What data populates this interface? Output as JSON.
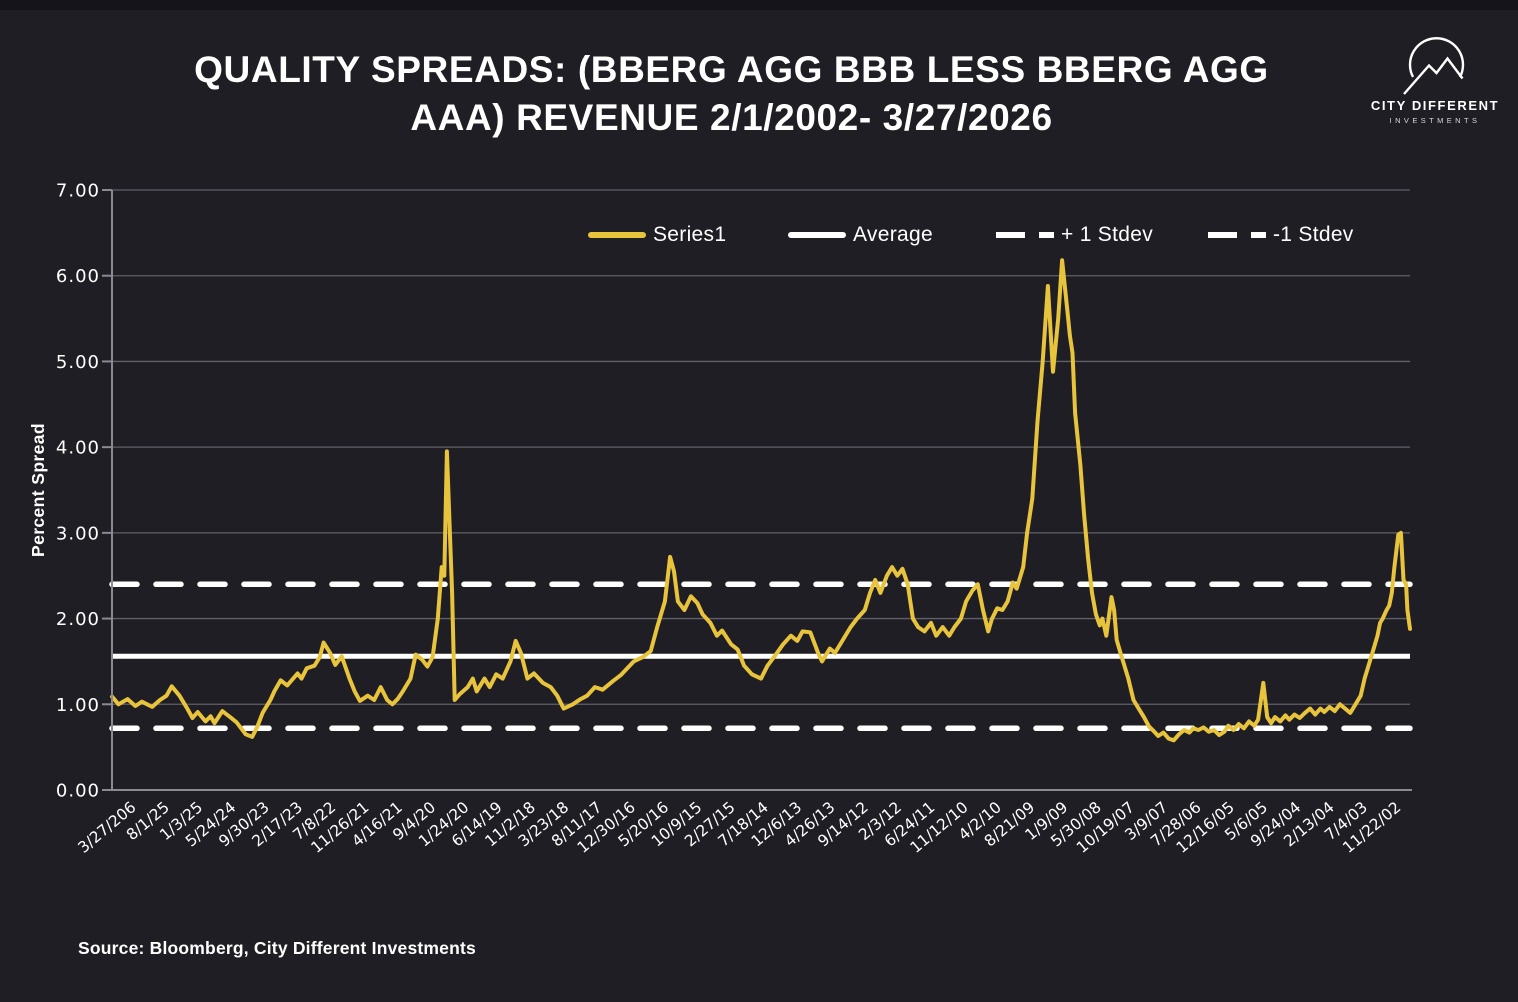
{
  "title": {
    "line1": "QUALITY SPREADS: (BBERG AGG BBB LESS BBERG AGG",
    "line2": "AAA) REVENUE 2/1/2002- 3/27/2026"
  },
  "logo": {
    "name": "CITY DIFFERENT",
    "subname": "INVESTMENTS"
  },
  "source_note": "Source: Bloomberg, City Different Investments",
  "colors": {
    "background": "#201e25",
    "series": "#e8c33c",
    "reference": "#ffffff",
    "grid": "#8a8890",
    "axis": "#8b8a91",
    "text": "#ffffff"
  },
  "legend": {
    "items": [
      {
        "label": "Series1",
        "style": "solid",
        "color": "#e8c33c"
      },
      {
        "label": "Average",
        "style": "solid",
        "color": "#ffffff"
      },
      {
        "label": "+ 1 Stdev",
        "style": "dashed",
        "color": "#ffffff"
      },
      {
        "label": "-1 Stdev",
        "style": "dashed",
        "color": "#ffffff"
      }
    ]
  },
  "chart_data": {
    "type": "line",
    "title": "QUALITY SPREADS: (BBERG AGG BBB LESS BBERG AGG AAA) REVENUE 2/1/2002- 3/27/2026",
    "ylabel": "Percent Spread",
    "xlabel": "",
    "ylim": [
      0,
      7
    ],
    "grid": "horizontal",
    "legend_position": "top-center-inside",
    "y_ticks": [
      "7.00",
      "6.00",
      "5.00",
      "4.00",
      "3.00",
      "2.00",
      "1.00",
      "0.00"
    ],
    "x_tick_labels": [
      "3/27/206",
      "8/1/25",
      "1/3/25",
      "5/24/24",
      "9/30/23",
      "2/17/23",
      "7/8/22",
      "11/26/21",
      "4/16/21",
      "9/4/20",
      "1/24/20",
      "6/14/19",
      "11/2/18",
      "3/23/18",
      "8/11/17",
      "12/30/16",
      "5/20/16",
      "10/9/15",
      "2/27/15",
      "7/18/14",
      "12/6/13",
      "4/26/13",
      "9/14/12",
      "2/3/12",
      "6/24/11",
      "11/12/10",
      "4/2/10",
      "8/21/09",
      "1/9/09",
      "5/30/08",
      "10/19/07",
      "3/9/07",
      "7/28/06",
      "12/16/05",
      "5/6/05",
      "9/24/04",
      "2/13/04",
      "7/4/03",
      "11/22/02"
    ],
    "x_axis_note": "time axis reversed: newest dates on the left, oldest (2002) on the right",
    "reference_lines": {
      "average": 1.56,
      "plus_1_stdev": 2.4,
      "minus_1_stdev": 0.72
    },
    "series": [
      {
        "name": "Series1",
        "color": "#e8c33c",
        "points": [
          [
            0.0,
            1.09
          ],
          [
            0.005,
            1.0
          ],
          [
            0.012,
            1.06
          ],
          [
            0.018,
            0.98
          ],
          [
            0.023,
            1.03
          ],
          [
            0.031,
            0.97
          ],
          [
            0.037,
            1.05
          ],
          [
            0.042,
            1.1
          ],
          [
            0.046,
            1.21
          ],
          [
            0.052,
            1.1
          ],
          [
            0.058,
            0.95
          ],
          [
            0.062,
            0.84
          ],
          [
            0.066,
            0.91
          ],
          [
            0.072,
            0.8
          ],
          [
            0.076,
            0.86
          ],
          [
            0.079,
            0.78
          ],
          [
            0.085,
            0.92
          ],
          [
            0.091,
            0.85
          ],
          [
            0.096,
            0.79
          ],
          [
            0.103,
            0.65
          ],
          [
            0.108,
            0.62
          ],
          [
            0.112,
            0.74
          ],
          [
            0.116,
            0.9
          ],
          [
            0.122,
            1.05
          ],
          [
            0.125,
            1.15
          ],
          [
            0.13,
            1.28
          ],
          [
            0.135,
            1.22
          ],
          [
            0.143,
            1.36
          ],
          [
            0.146,
            1.3
          ],
          [
            0.15,
            1.42
          ],
          [
            0.156,
            1.45
          ],
          [
            0.16,
            1.55
          ],
          [
            0.163,
            1.72
          ],
          [
            0.168,
            1.6
          ],
          [
            0.172,
            1.46
          ],
          [
            0.177,
            1.56
          ],
          [
            0.183,
            1.3
          ],
          [
            0.187,
            1.15
          ],
          [
            0.191,
            1.04
          ],
          [
            0.197,
            1.1
          ],
          [
            0.202,
            1.05
          ],
          [
            0.207,
            1.2
          ],
          [
            0.212,
            1.05
          ],
          [
            0.216,
            1.0
          ],
          [
            0.22,
            1.06
          ],
          [
            0.224,
            1.15
          ],
          [
            0.23,
            1.3
          ],
          [
            0.234,
            1.58
          ],
          [
            0.239,
            1.52
          ],
          [
            0.243,
            1.44
          ],
          [
            0.247,
            1.55
          ],
          [
            0.251,
            2.0
          ],
          [
            0.254,
            2.6
          ],
          [
            0.256,
            2.5
          ],
          [
            0.258,
            3.95
          ],
          [
            0.262,
            2.3
          ],
          [
            0.264,
            1.05
          ],
          [
            0.268,
            1.12
          ],
          [
            0.274,
            1.2
          ],
          [
            0.278,
            1.3
          ],
          [
            0.281,
            1.15
          ],
          [
            0.287,
            1.3
          ],
          [
            0.291,
            1.2
          ],
          [
            0.296,
            1.35
          ],
          [
            0.301,
            1.3
          ],
          [
            0.307,
            1.5
          ],
          [
            0.311,
            1.74
          ],
          [
            0.315,
            1.6
          ],
          [
            0.32,
            1.3
          ],
          [
            0.325,
            1.36
          ],
          [
            0.332,
            1.25
          ],
          [
            0.338,
            1.2
          ],
          [
            0.343,
            1.1
          ],
          [
            0.348,
            0.95
          ],
          [
            0.355,
            1.0
          ],
          [
            0.361,
            1.06
          ],
          [
            0.366,
            1.1
          ],
          [
            0.372,
            1.2
          ],
          [
            0.378,
            1.17
          ],
          [
            0.386,
            1.27
          ],
          [
            0.392,
            1.34
          ],
          [
            0.397,
            1.42
          ],
          [
            0.402,
            1.5
          ],
          [
            0.409,
            1.55
          ],
          [
            0.415,
            1.62
          ],
          [
            0.42,
            1.9
          ],
          [
            0.426,
            2.2
          ],
          [
            0.43,
            2.72
          ],
          [
            0.433,
            2.55
          ],
          [
            0.436,
            2.2
          ],
          [
            0.441,
            2.1
          ],
          [
            0.446,
            2.26
          ],
          [
            0.451,
            2.18
          ],
          [
            0.455,
            2.05
          ],
          [
            0.461,
            1.95
          ],
          [
            0.466,
            1.8
          ],
          [
            0.47,
            1.86
          ],
          [
            0.477,
            1.7
          ],
          [
            0.482,
            1.64
          ],
          [
            0.487,
            1.45
          ],
          [
            0.493,
            1.35
          ],
          [
            0.5,
            1.3
          ],
          [
            0.505,
            1.45
          ],
          [
            0.51,
            1.55
          ],
          [
            0.517,
            1.7
          ],
          [
            0.523,
            1.8
          ],
          [
            0.528,
            1.74
          ],
          [
            0.532,
            1.85
          ],
          [
            0.538,
            1.84
          ],
          [
            0.544,
            1.6
          ],
          [
            0.547,
            1.5
          ],
          [
            0.553,
            1.65
          ],
          [
            0.557,
            1.6
          ],
          [
            0.563,
            1.75
          ],
          [
            0.569,
            1.9
          ],
          [
            0.574,
            2.0
          ],
          [
            0.58,
            2.1
          ],
          [
            0.584,
            2.3
          ],
          [
            0.588,
            2.45
          ],
          [
            0.592,
            2.3
          ],
          [
            0.597,
            2.5
          ],
          [
            0.601,
            2.6
          ],
          [
            0.605,
            2.5
          ],
          [
            0.609,
            2.58
          ],
          [
            0.613,
            2.4
          ],
          [
            0.617,
            2.0
          ],
          [
            0.621,
            1.9
          ],
          [
            0.626,
            1.85
          ],
          [
            0.631,
            1.95
          ],
          [
            0.635,
            1.8
          ],
          [
            0.64,
            1.9
          ],
          [
            0.645,
            1.8
          ],
          [
            0.649,
            1.9
          ],
          [
            0.654,
            2.0
          ],
          [
            0.658,
            2.2
          ],
          [
            0.663,
            2.33
          ],
          [
            0.667,
            2.4
          ],
          [
            0.671,
            2.1
          ],
          [
            0.675,
            1.85
          ],
          [
            0.678,
            2.0
          ],
          [
            0.682,
            2.12
          ],
          [
            0.686,
            2.1
          ],
          [
            0.69,
            2.2
          ],
          [
            0.694,
            2.42
          ],
          [
            0.697,
            2.35
          ],
          [
            0.702,
            2.6
          ],
          [
            0.705,
            3.0
          ],
          [
            0.709,
            3.4
          ],
          [
            0.713,
            4.3
          ],
          [
            0.717,
            5.0
          ],
          [
            0.721,
            5.88
          ],
          [
            0.725,
            4.88
          ],
          [
            0.729,
            5.5
          ],
          [
            0.732,
            6.18
          ],
          [
            0.736,
            5.6
          ],
          [
            0.738,
            5.3
          ],
          [
            0.74,
            5.1
          ],
          [
            0.742,
            4.4
          ],
          [
            0.746,
            3.8
          ],
          [
            0.749,
            3.2
          ],
          [
            0.752,
            2.7
          ],
          [
            0.755,
            2.3
          ],
          [
            0.758,
            2.05
          ],
          [
            0.761,
            1.92
          ],
          [
            0.763,
            2.0
          ],
          [
            0.766,
            1.8
          ],
          [
            0.77,
            2.25
          ],
          [
            0.772,
            2.1
          ],
          [
            0.774,
            1.75
          ],
          [
            0.777,
            1.6
          ],
          [
            0.78,
            1.45
          ],
          [
            0.783,
            1.3
          ],
          [
            0.787,
            1.05
          ],
          [
            0.791,
            0.95
          ],
          [
            0.795,
            0.85
          ],
          [
            0.799,
            0.74
          ],
          [
            0.803,
            0.68
          ],
          [
            0.806,
            0.63
          ],
          [
            0.81,
            0.67
          ],
          [
            0.814,
            0.6
          ],
          [
            0.818,
            0.58
          ],
          [
            0.822,
            0.65
          ],
          [
            0.826,
            0.7
          ],
          [
            0.83,
            0.67
          ],
          [
            0.833,
            0.72
          ],
          [
            0.837,
            0.7
          ],
          [
            0.841,
            0.73
          ],
          [
            0.845,
            0.68
          ],
          [
            0.849,
            0.7
          ],
          [
            0.853,
            0.64
          ],
          [
            0.857,
            0.68
          ],
          [
            0.86,
            0.75
          ],
          [
            0.864,
            0.7
          ],
          [
            0.868,
            0.77
          ],
          [
            0.872,
            0.72
          ],
          [
            0.876,
            0.8
          ],
          [
            0.88,
            0.75
          ],
          [
            0.883,
            0.82
          ],
          [
            0.887,
            1.25
          ],
          [
            0.89,
            0.85
          ],
          [
            0.893,
            0.78
          ],
          [
            0.896,
            0.85
          ],
          [
            0.9,
            0.8
          ],
          [
            0.904,
            0.87
          ],
          [
            0.907,
            0.82
          ],
          [
            0.911,
            0.88
          ],
          [
            0.915,
            0.84
          ],
          [
            0.919,
            0.9
          ],
          [
            0.923,
            0.95
          ],
          [
            0.927,
            0.88
          ],
          [
            0.931,
            0.95
          ],
          [
            0.934,
            0.91
          ],
          [
            0.938,
            0.97
          ],
          [
            0.942,
            0.92
          ],
          [
            0.946,
            1.0
          ],
          [
            0.95,
            0.95
          ],
          [
            0.954,
            0.9
          ],
          [
            0.958,
            1.0
          ],
          [
            0.962,
            1.1
          ],
          [
            0.965,
            1.3
          ],
          [
            0.969,
            1.5
          ],
          [
            0.972,
            1.65
          ],
          [
            0.975,
            1.8
          ],
          [
            0.977,
            1.95
          ],
          [
            0.979,
            2.0
          ],
          [
            0.982,
            2.1
          ],
          [
            0.984,
            2.15
          ],
          [
            0.986,
            2.3
          ],
          [
            0.988,
            2.6
          ],
          [
            0.991,
            2.98
          ],
          [
            0.993,
            3.0
          ],
          [
            0.995,
            2.45
          ],
          [
            0.997,
            2.4
          ],
          [
            0.998,
            2.1
          ],
          [
            1.0,
            1.88
          ]
        ]
      }
    ]
  }
}
